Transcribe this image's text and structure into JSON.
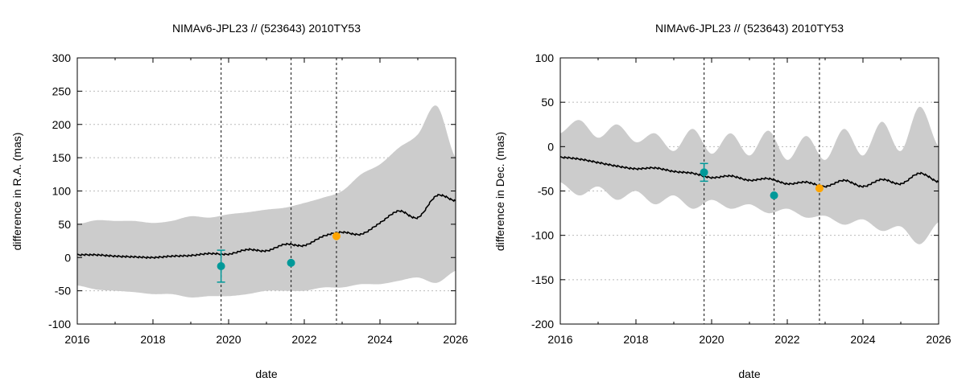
{
  "colors": {
    "band": "#cccccc",
    "line": "#000000",
    "grid": "#bbbbbb",
    "marker_teal": "#009999",
    "marker_orange": "#ffa500",
    "vline": "#333333"
  },
  "chart_data": [
    {
      "type": "line",
      "title": "NIMAv6-JPL23 // (523643) 2010TY53",
      "xlabel": "date",
      "ylabel": "difference in R.A. (mas)",
      "xlim": [
        2016,
        2026
      ],
      "ylim": [
        -100,
        300
      ],
      "xticks": [
        2016,
        2018,
        2020,
        2022,
        2024,
        2026
      ],
      "xtick_labels": [
        "2016",
        "2018",
        "2020",
        "2022",
        "2024",
        "2026"
      ],
      "yticks": [
        -100,
        -50,
        0,
        50,
        100,
        150,
        200,
        250,
        300
      ],
      "ytick_labels": [
        "-100",
        "-50",
        "0",
        "50",
        "100",
        "150",
        "200",
        "250",
        "300"
      ],
      "grid": true,
      "vlines": [
        2019.8,
        2021.65,
        2022.85
      ],
      "mean": {
        "x": [
          2016,
          2016.5,
          2017,
          2017.5,
          2018,
          2018.5,
          2019,
          2019.5,
          2020,
          2020.5,
          2021,
          2021.5,
          2022,
          2022.5,
          2023,
          2023.5,
          2024,
          2024.5,
          2025,
          2025.5,
          2026
        ],
        "y": [
          4,
          4,
          2,
          1,
          0,
          2,
          3,
          6,
          5,
          12,
          10,
          20,
          18,
          32,
          38,
          35,
          52,
          70,
          60,
          93,
          85
        ]
      },
      "envelope": {
        "x": [
          2016,
          2016.5,
          2017,
          2017.5,
          2018,
          2018.5,
          2019,
          2019.5,
          2020,
          2020.5,
          2021,
          2021.5,
          2022,
          2022.5,
          2023,
          2023.5,
          2024,
          2024.5,
          2025,
          2025.5,
          2026
        ],
        "upper": [
          50,
          56,
          55,
          55,
          52,
          55,
          62,
          60,
          65,
          68,
          72,
          75,
          82,
          90,
          100,
          125,
          140,
          165,
          185,
          228,
          150
        ],
        "lower": [
          -42,
          -48,
          -50,
          -52,
          -55,
          -55,
          -60,
          -58,
          -58,
          -55,
          -50,
          -50,
          -50,
          -45,
          -45,
          -40,
          -40,
          -35,
          -30,
          -38,
          -20
        ]
      },
      "points": [
        {
          "x": 2019.8,
          "y": -13,
          "err": 24,
          "color": "teal"
        },
        {
          "x": 2021.65,
          "y": -8,
          "err": 0,
          "color": "teal"
        },
        {
          "x": 2022.85,
          "y": 32,
          "err": 0,
          "color": "orange"
        }
      ]
    },
    {
      "type": "line",
      "title": "NIMAv6-JPL23 // (523643) 2010TY53",
      "xlabel": "date",
      "ylabel": "difference in Dec. (mas)",
      "xlim": [
        2016,
        2026
      ],
      "ylim": [
        -200,
        100
      ],
      "xticks": [
        2016,
        2018,
        2020,
        2022,
        2024,
        2026
      ],
      "xtick_labels": [
        "2016",
        "2018",
        "2020",
        "2022",
        "2024",
        "2026"
      ],
      "yticks": [
        -200,
        -150,
        -100,
        -50,
        0,
        50,
        100
      ],
      "ytick_labels": [
        "-200",
        "-150",
        "-100",
        "-50",
        "0",
        "50",
        "100"
      ],
      "grid": true,
      "vlines": [
        2019.8,
        2021.65,
        2022.85
      ],
      "mean": {
        "x": [
          2016,
          2016.5,
          2017,
          2017.5,
          2018,
          2018.5,
          2019,
          2019.5,
          2020,
          2020.5,
          2021,
          2021.5,
          2022,
          2022.5,
          2023,
          2023.5,
          2024,
          2024.5,
          2025,
          2025.5,
          2026
        ],
        "y": [
          -12,
          -14,
          -18,
          -22,
          -25,
          -24,
          -28,
          -30,
          -35,
          -33,
          -38,
          -36,
          -42,
          -40,
          -45,
          -38,
          -45,
          -37,
          -42,
          -30,
          -40
        ]
      },
      "envelope": {
        "x": [
          2016,
          2016.5,
          2017,
          2017.5,
          2018,
          2018.5,
          2019,
          2019.5,
          2020,
          2020.5,
          2021,
          2021.5,
          2022,
          2022.5,
          2023,
          2023.5,
          2024,
          2024.5,
          2025,
          2025.5,
          2026
        ],
        "upper": [
          15,
          30,
          10,
          25,
          5,
          15,
          -5,
          20,
          -8,
          15,
          -10,
          18,
          -15,
          12,
          -15,
          20,
          -10,
          28,
          -5,
          45,
          0
        ],
        "lower": [
          -40,
          -55,
          -45,
          -60,
          -50,
          -65,
          -55,
          -70,
          -60,
          -70,
          -65,
          -75,
          -70,
          -80,
          -78,
          -88,
          -82,
          -95,
          -90,
          -110,
          -85
        ]
      },
      "points": [
        {
          "x": 2019.8,
          "y": -29,
          "err": 10,
          "color": "teal"
        },
        {
          "x": 2021.65,
          "y": -55,
          "err": 0,
          "color": "teal"
        },
        {
          "x": 2022.85,
          "y": -47,
          "err": 0,
          "color": "orange"
        }
      ]
    }
  ]
}
